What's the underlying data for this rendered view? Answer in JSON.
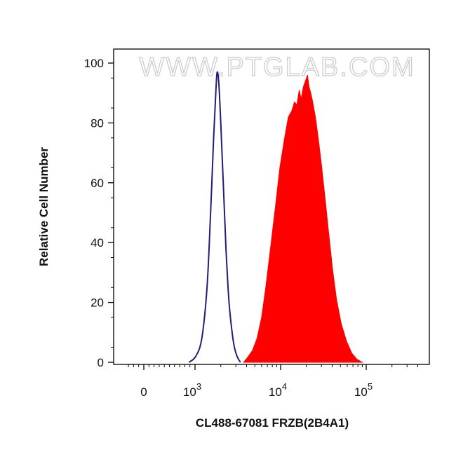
{
  "chart_data": {
    "type": "area",
    "xlabel": "CL488-67081 FRZB(2B4A1)",
    "ylabel": "Relative Cell Number",
    "watermark": "WWW.PTGLAB.COM",
    "x_scale": "biexponential",
    "xlim": [
      -300,
      400000
    ],
    "ylim": [
      0,
      100
    ],
    "y_ticks": [
      0,
      20,
      40,
      60,
      80,
      100
    ],
    "x_ticks": [
      {
        "value": 0,
        "label": "0",
        "exp": ""
      },
      {
        "value": 1000,
        "label": "10",
        "exp": "3"
      },
      {
        "value": 10000,
        "label": "10",
        "exp": "4"
      },
      {
        "value": 100000,
        "label": "10",
        "exp": "5"
      }
    ],
    "series": [
      {
        "style": "outline",
        "color": "#1f1f7a",
        "points": [
          [
            880,
            0
          ],
          [
            1020,
            2
          ],
          [
            1200,
            8
          ],
          [
            1380,
            25
          ],
          [
            1520,
            50
          ],
          [
            1650,
            75
          ],
          [
            1760,
            92
          ],
          [
            1820,
            97
          ],
          [
            1900,
            93
          ],
          [
            2000,
            80
          ],
          [
            2150,
            58
          ],
          [
            2300,
            38
          ],
          [
            2500,
            20
          ],
          [
            2800,
            7
          ],
          [
            3100,
            2
          ],
          [
            3400,
            0
          ]
        ]
      },
      {
        "style": "filled",
        "color": "#ff0000",
        "points": [
          [
            3700,
            0
          ],
          [
            4200,
            2
          ],
          [
            4700,
            4
          ],
          [
            5300,
            8
          ],
          [
            6000,
            15
          ],
          [
            6700,
            25
          ],
          [
            7600,
            38
          ],
          [
            8700,
            52
          ],
          [
            9800,
            65
          ],
          [
            11000,
            74
          ],
          [
            12300,
            82
          ],
          [
            13500,
            84
          ],
          [
            14500,
            87
          ],
          [
            15500,
            86
          ],
          [
            16500,
            91
          ],
          [
            17400,
            88
          ],
          [
            18400,
            92
          ],
          [
            19500,
            94
          ],
          [
            20600,
            96
          ],
          [
            21500,
            92
          ],
          [
            22500,
            90
          ],
          [
            23700,
            87
          ],
          [
            25500,
            82
          ],
          [
            27500,
            75
          ],
          [
            30000,
            66
          ],
          [
            33000,
            55
          ],
          [
            36500,
            43
          ],
          [
            40500,
            31
          ],
          [
            45000,
            21
          ],
          [
            51000,
            13
          ],
          [
            59000,
            7
          ],
          [
            68000,
            3
          ],
          [
            78000,
            1
          ],
          [
            90000,
            0
          ]
        ]
      }
    ]
  }
}
